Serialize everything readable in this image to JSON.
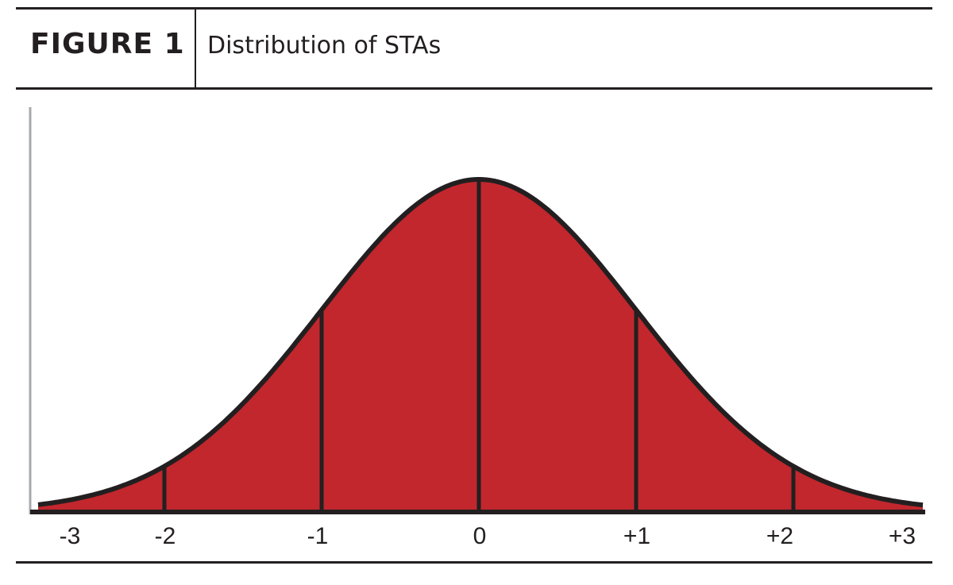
{
  "figure": {
    "label": "FIGURE 1",
    "title": "Distribution of STAs"
  },
  "chart_data": {
    "type": "area",
    "title": "Distribution of STAs",
    "xlabel": "",
    "ylabel": "",
    "xlim": [
      -3,
      3
    ],
    "ticks": [
      {
        "value": -3,
        "label": "-3"
      },
      {
        "value": -2,
        "label": "-2"
      },
      {
        "value": -1,
        "label": "-1"
      },
      {
        "value": 0,
        "label": "0"
      },
      {
        "value": 1,
        "label": "+1"
      },
      {
        "value": 2,
        "label": "+2"
      },
      {
        "value": 3,
        "label": "+3"
      }
    ],
    "segment_boundaries": [
      -2,
      -1,
      0,
      1,
      2
    ],
    "curve": "normal distribution",
    "fill_color": "#c1272d",
    "stroke_color": "#231f20",
    "grid": false,
    "legend": "none"
  }
}
